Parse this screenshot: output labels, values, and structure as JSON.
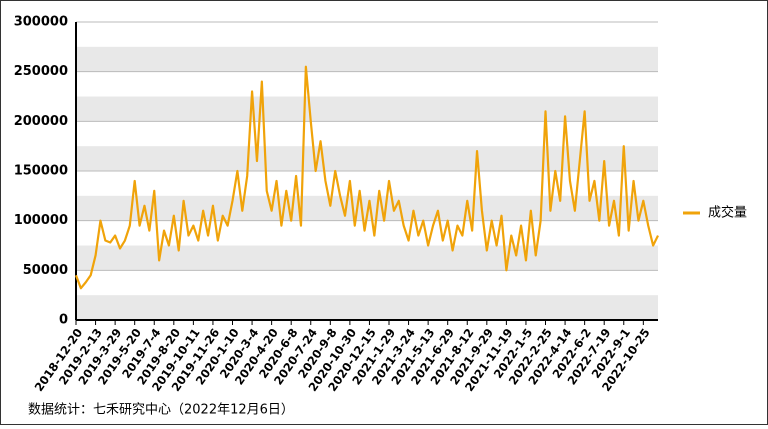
{
  "chart_data": {
    "type": "line",
    "categories": [
      "2018-12-20",
      null,
      null,
      null,
      "2019-2-13",
      null,
      null,
      null,
      "2019-3-29",
      null,
      null,
      null,
      "2019-5-20",
      null,
      null,
      null,
      "2019-7-4",
      null,
      null,
      null,
      "2019-8-20",
      null,
      null,
      null,
      "2019-10-11",
      null,
      null,
      null,
      "2019-11-26",
      null,
      null,
      null,
      "2020-1-10",
      null,
      null,
      null,
      "2020-3-4",
      null,
      null,
      null,
      "2020-4-20",
      null,
      null,
      null,
      "2020-6-8",
      null,
      null,
      null,
      "2020-7-24",
      null,
      null,
      null,
      "2020-9-8",
      null,
      null,
      null,
      "2020-10-30",
      null,
      null,
      null,
      "2020-12-15",
      null,
      null,
      null,
      "2021-1-29",
      null,
      null,
      null,
      "2021-3-24",
      null,
      null,
      null,
      "2021-5-13",
      null,
      null,
      null,
      "2021-6-29",
      null,
      null,
      null,
      "2021-8-12",
      null,
      null,
      null,
      "2021-9-29",
      null,
      null,
      null,
      "2021-11-19",
      null,
      null,
      null,
      "2022-1-5",
      null,
      null,
      null,
      "2022-2-25",
      null,
      null,
      null,
      "2022-4-14",
      null,
      null,
      null,
      "2022-6-2",
      null,
      null,
      null,
      "2022-7-19",
      null,
      null,
      null,
      "2022-9-1",
      null,
      null,
      null,
      "2022-10-25",
      null,
      null,
      null
    ],
    "series": [
      {
        "name": "成交量",
        "color": "#f0a30a",
        "values": [
          45000,
          32000,
          38000,
          45000,
          65000,
          100000,
          80000,
          78000,
          85000,
          72000,
          80000,
          95000,
          140000,
          95000,
          115000,
          90000,
          130000,
          60000,
          90000,
          75000,
          105000,
          70000,
          120000,
          85000,
          95000,
          80000,
          110000,
          85000,
          115000,
          80000,
          105000,
          95000,
          120000,
          150000,
          110000,
          145000,
          230000,
          160000,
          240000,
          130000,
          110000,
          140000,
          95000,
          130000,
          100000,
          145000,
          95000,
          255000,
          200000,
          150000,
          180000,
          140000,
          115000,
          150000,
          125000,
          105000,
          140000,
          95000,
          130000,
          90000,
          120000,
          85000,
          130000,
          100000,
          140000,
          110000,
          120000,
          95000,
          80000,
          110000,
          85000,
          100000,
          75000,
          95000,
          110000,
          80000,
          100000,
          70000,
          95000,
          85000,
          120000,
          90000,
          170000,
          110000,
          70000,
          100000,
          75000,
          105000,
          50000,
          85000,
          65000,
          95000,
          60000,
          110000,
          65000,
          100000,
          210000,
          110000,
          150000,
          120000,
          205000,
          140000,
          110000,
          160000,
          210000,
          120000,
          140000,
          100000,
          160000,
          95000,
          120000,
          85000,
          175000,
          90000,
          140000,
          100000,
          120000,
          95000,
          75000,
          85000
        ]
      }
    ],
    "ylim": [
      0,
      300000
    ],
    "yticks": [
      0,
      50000,
      100000,
      150000,
      200000,
      250000,
      300000
    ],
    "grid": true,
    "legend": "right",
    "footnote": "数据统计：七禾研究中心（2022年12月6日）"
  }
}
